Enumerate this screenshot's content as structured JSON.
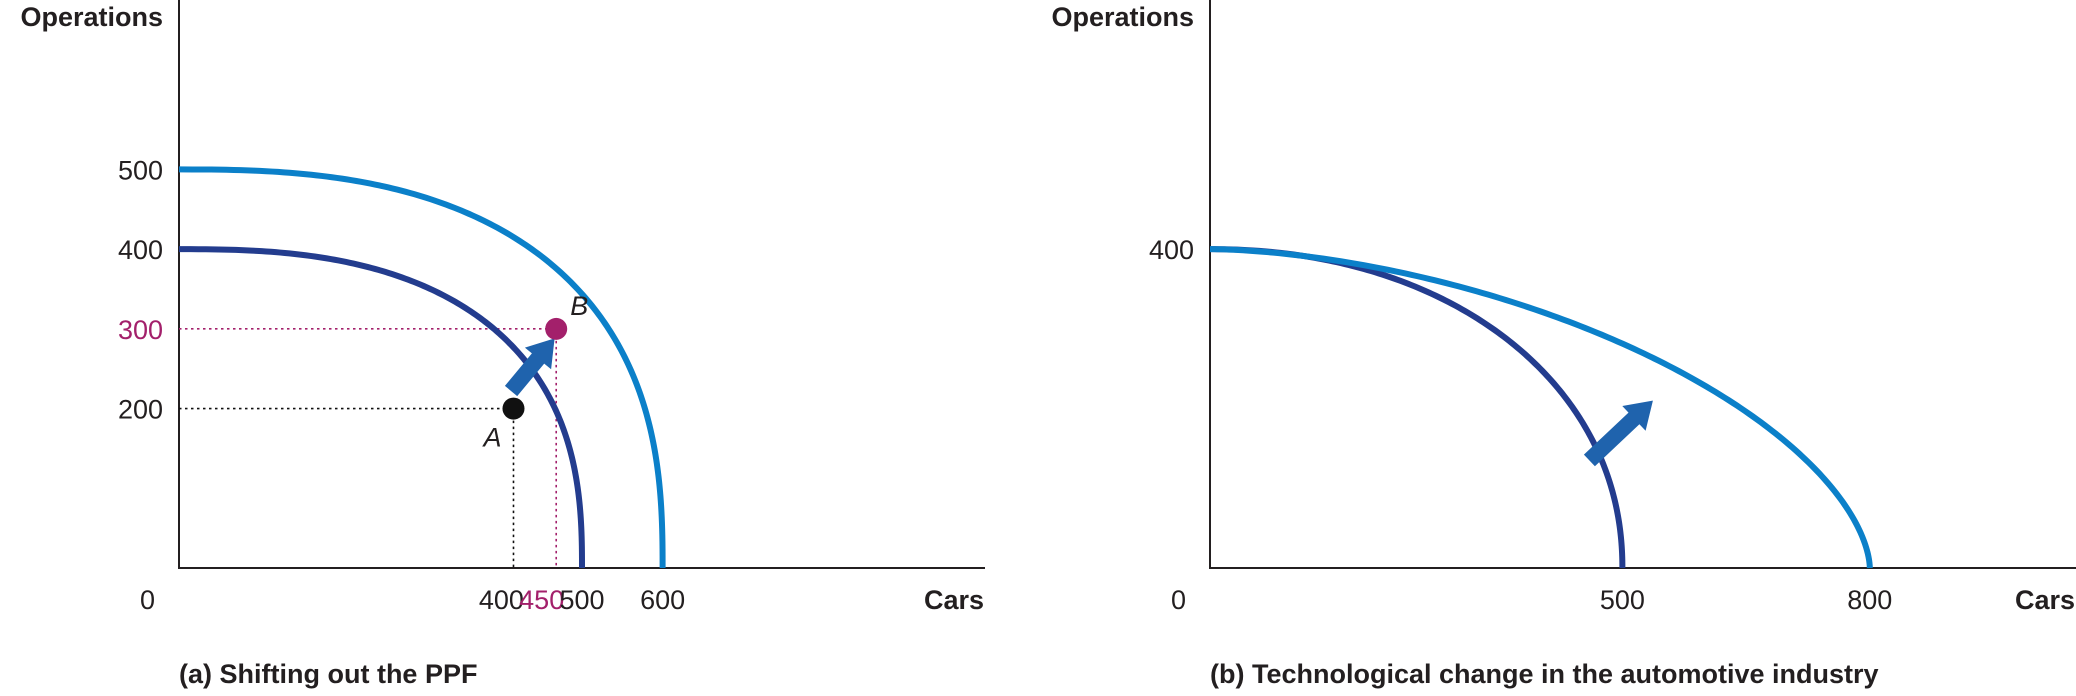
{
  "colors": {
    "outer_curve": "#0b80c9",
    "inner_curve": "#233c8e",
    "arrow": "#1f63ad",
    "point_a": "#111111",
    "point_b": "#a3206b",
    "highlight_tick": "#a3206b",
    "axis": "#231f20"
  },
  "chart_data": [
    {
      "type": "line",
      "caption": "(a) Shifting out the PPF",
      "ylabel": "Operations",
      "xlabel": "Cars",
      "origin_label": "0",
      "xlim": [
        0,
        1000
      ],
      "ylim": [
        0,
        700
      ],
      "x_ticks": [
        {
          "value": 400,
          "label": "400",
          "highlight": false
        },
        {
          "value": 450,
          "label": "450",
          "highlight": true
        },
        {
          "value": 500,
          "label": "500",
          "highlight": false
        },
        {
          "value": 600,
          "label": "600",
          "highlight": false
        }
      ],
      "y_ticks": [
        {
          "value": 500,
          "label": "500",
          "highlight": false
        },
        {
          "value": 400,
          "label": "400",
          "highlight": false
        },
        {
          "value": 300,
          "label": "300",
          "highlight": true
        },
        {
          "value": 200,
          "label": "200",
          "highlight": false
        }
      ],
      "series": [
        {
          "role": "inner",
          "x_intercept": 500,
          "y_intercept": 400,
          "exponent": 2.6
        },
        {
          "role": "outer",
          "x_intercept": 600,
          "y_intercept": 500,
          "exponent": 2.6
        }
      ],
      "points": [
        {
          "label": "A",
          "x": 415,
          "y": 200,
          "role": "point_a"
        },
        {
          "label": "B",
          "x": 468,
          "y": 300,
          "role": "point_b"
        }
      ],
      "arrow": {
        "from": [
          412,
          222
        ],
        "to": [
          466,
          288
        ]
      }
    },
    {
      "type": "line",
      "caption": "(b) Technological change in the automotive industry",
      "ylabel": "Operations",
      "xlabel": "Cars",
      "origin_label": "0",
      "xlim": [
        0,
        1050
      ],
      "ylim": [
        0,
        700
      ],
      "x_ticks": [
        {
          "value": 500,
          "label": "500",
          "highlight": false
        },
        {
          "value": 800,
          "label": "800",
          "highlight": false
        }
      ],
      "y_ticks": [
        {
          "value": 400,
          "label": "400",
          "highlight": false
        }
      ],
      "series": [
        {
          "role": "inner",
          "x_intercept": 500,
          "y_intercept": 400,
          "exponent": 2.1
        },
        {
          "role": "outer",
          "x_intercept": 800,
          "y_intercept": 400,
          "exponent": 1.7
        }
      ],
      "points": [],
      "arrow": {
        "from": [
          460,
          135
        ],
        "to": [
          537,
          210
        ]
      }
    }
  ]
}
